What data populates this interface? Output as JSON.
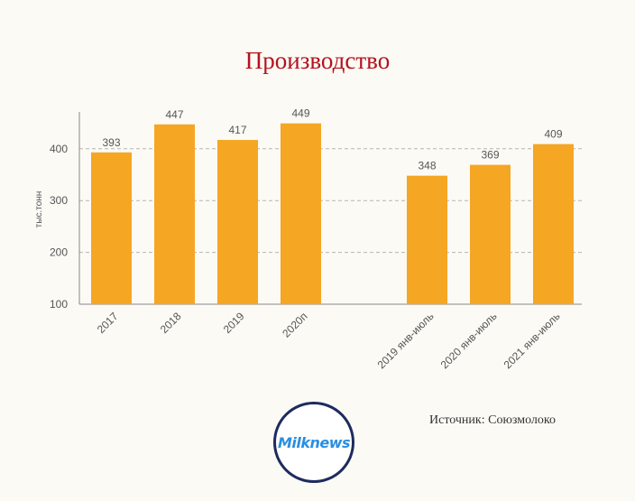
{
  "chart_data": {
    "type": "bar",
    "title": "Производство",
    "ylabel": "тыс.тонн",
    "xlabel": "",
    "ylim": [
      100,
      480
    ],
    "yticks": [
      100,
      200,
      300,
      400
    ],
    "grid": true,
    "categories": [
      "2017",
      "2018",
      "2019",
      "2020п",
      "2019 янв-июль",
      "2020 янв-июль",
      "2021 янв-июль"
    ],
    "values": [
      393,
      447,
      417,
      449,
      348,
      369,
      409
    ],
    "bar_color": "#f5a623",
    "source": "Источник: Союзмолоко"
  },
  "logo": {
    "text": "Milknews"
  }
}
